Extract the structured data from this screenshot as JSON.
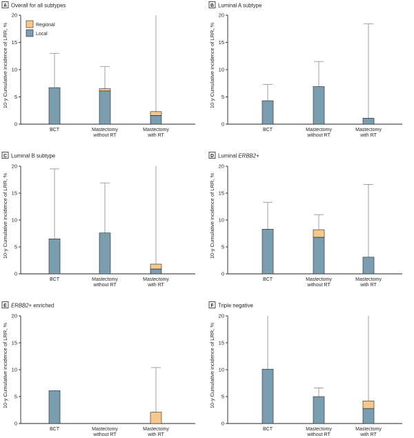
{
  "chart_data": [
    {
      "type": "bar",
      "panel": "A",
      "title": "Overall for all subtypes",
      "ylabel": "10-y Cumulative incidence of LRR, %",
      "ylim": [
        0,
        20
      ],
      "yticks": [
        "0",
        "5",
        "10",
        "15",
        "20"
      ],
      "categories": [
        "BCT",
        "Mastectomy\nwithout RT",
        "Mastectomy\nwith RT"
      ],
      "series": [
        {
          "name": "Local",
          "values": [
            6.7,
            6.1,
            1.6
          ]
        },
        {
          "name": "Regional",
          "values": [
            0,
            0.4,
            0.7
          ]
        }
      ],
      "upper_ci": [
        13.0,
        10.6,
        20.0
      ],
      "legend": {
        "entries": [
          "Regional",
          "Local"
        ],
        "position": "top-left"
      }
    },
    {
      "type": "bar",
      "panel": "B",
      "title": "Luminal A subtype",
      "ylabel": "10-y Cumulative incidence of LRR, %",
      "ylim": [
        0,
        20
      ],
      "yticks": [
        "0",
        "5",
        "10",
        "15",
        "20"
      ],
      "categories": [
        "BCT",
        "Mastectomy\nwithout RT",
        "Mastectomy\nwith RT"
      ],
      "series": [
        {
          "name": "Local",
          "values": [
            4.3,
            6.9,
            1.1
          ]
        },
        {
          "name": "Regional",
          "values": [
            0,
            0,
            0
          ]
        }
      ],
      "upper_ci": [
        7.3,
        11.5,
        18.4
      ]
    },
    {
      "type": "bar",
      "panel": "C",
      "title": "Luminal B subtype",
      "ylabel": "10-y Cumulative incidence of LRR, %",
      "ylim": [
        0,
        20
      ],
      "yticks": [
        "0",
        "5",
        "10",
        "15",
        "20"
      ],
      "categories": [
        "BCT",
        "Mastectomy\nwithout RT",
        "Mastectomy\nwith RT"
      ],
      "series": [
        {
          "name": "Local",
          "values": [
            6.5,
            7.6,
            0.9
          ]
        },
        {
          "name": "Regional",
          "values": [
            0,
            0,
            0.9
          ]
        }
      ],
      "upper_ci": [
        19.5,
        16.9,
        20.0
      ]
    },
    {
      "type": "bar",
      "panel": "D",
      "title_prefix": "Luminal ",
      "title_em": "ERBB2",
      "title_suffix": "+",
      "ylabel": "10-y Cumulative incidence of LRR, %",
      "ylim": [
        0,
        20
      ],
      "yticks": [
        "0",
        "5",
        "10",
        "15",
        "20"
      ],
      "categories": [
        "BCT",
        "Mastectomy\nwithout RT",
        "Mastectomy\nwith RT"
      ],
      "series": [
        {
          "name": "Local",
          "values": [
            8.3,
            6.8,
            3.1
          ]
        },
        {
          "name": "Regional",
          "values": [
            0,
            1.4,
            0
          ]
        }
      ],
      "upper_ci": [
        13.3,
        11.0,
        16.6
      ]
    },
    {
      "type": "bar",
      "panel": "E",
      "title_prefix": "",
      "title_em": "ERBB2",
      "title_suffix": "+ enriched",
      "ylabel": "10-y Cumulative incidence of LRR, %",
      "ylim": [
        0,
        20
      ],
      "yticks": [
        "0",
        "5",
        "10",
        "15",
        "20"
      ],
      "categories": [
        "BCT",
        "Mastectomy\nwithout RT",
        "Mastectomy\nwith RT"
      ],
      "series": [
        {
          "name": "Local",
          "values": [
            6.1,
            0,
            0
          ]
        },
        {
          "name": "Regional",
          "values": [
            0,
            0,
            2.1
          ]
        }
      ],
      "upper_ci": [
        null,
        null,
        10.4
      ]
    },
    {
      "type": "bar",
      "panel": "F",
      "title": "Triple negative",
      "ylabel": "10-y Cumulative incidence of LRR, %",
      "ylim": [
        0,
        20
      ],
      "yticks": [
        "0",
        "5",
        "10",
        "15",
        "20"
      ],
      "categories": [
        "BCT",
        "Mastectomy\nwithout RT",
        "Mastectomy\nwith RT"
      ],
      "series": [
        {
          "name": "Local",
          "values": [
            10.1,
            5.0,
            2.8
          ]
        },
        {
          "name": "Regional",
          "values": [
            0,
            0,
            1.4
          ]
        }
      ],
      "upper_ci": [
        20.0,
        6.6,
        20.0
      ]
    }
  ],
  "colors": {
    "local": "#7a9eb0",
    "regional": "#f5c98c",
    "error_bar": "#8a8a8a",
    "axis": "#231f20"
  }
}
